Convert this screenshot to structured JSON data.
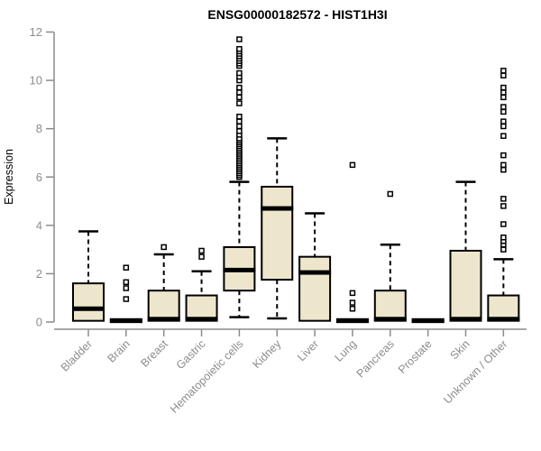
{
  "chart_data": {
    "type": "boxplot",
    "title": "ENSG00000182572 - HIST1H3I",
    "ylabel": "Expression",
    "xlabel": "",
    "ylim": [
      0,
      12
    ],
    "yticks": [
      0,
      2,
      4,
      6,
      8,
      10,
      12
    ],
    "grid": false,
    "legend": false,
    "colors": {
      "box_fill": "#EDE6CD",
      "box_stroke": "#000000",
      "median": "#000000",
      "whisker": "#000000",
      "outlier_fill": "#FFFFFF",
      "axis": "#8C8C8C",
      "tick_label": "#8C8C8C",
      "title": "#000000"
    },
    "categories": [
      "Bladder",
      "Brain",
      "Breast",
      "Gastric",
      "Hematopoietic cells",
      "Kidney",
      "Liver",
      "Lung",
      "Pancreas",
      "Prostate",
      "Skin",
      "Unknown / Other"
    ],
    "series": [
      {
        "name": "Bladder",
        "low": 0.05,
        "q1": 0.05,
        "median": 0.55,
        "q3": 1.6,
        "high": 3.75,
        "outliers": []
      },
      {
        "name": "Brain",
        "low": 0,
        "q1": 0,
        "median": 0.05,
        "q3": 0.12,
        "high": 0.12,
        "outliers": [
          0.95,
          1.4,
          1.65,
          2.25
        ]
      },
      {
        "name": "Breast",
        "low": 0.05,
        "q1": 0.05,
        "median": 0.12,
        "q3": 1.3,
        "high": 2.8,
        "outliers": [
          3.1
        ]
      },
      {
        "name": "Gastric",
        "low": 0.05,
        "q1": 0.05,
        "median": 0.12,
        "q3": 1.1,
        "high": 2.1,
        "outliers": [
          2.7,
          2.95
        ]
      },
      {
        "name": "Hematopoietic cells",
        "low": 0.2,
        "q1": 1.3,
        "median": 2.15,
        "q3": 3.1,
        "high": 5.8,
        "outliers": [
          6.0,
          6.08,
          6.16,
          6.24,
          6.32,
          6.4,
          6.48,
          6.56,
          6.64,
          6.72,
          6.8,
          6.88,
          6.96,
          7.04,
          7.12,
          7.2,
          7.28,
          7.36,
          7.44,
          7.52,
          7.6,
          7.75,
          7.9,
          8.1,
          8.3,
          8.5,
          9.05,
          9.3,
          9.5,
          9.7,
          10.0,
          10.15,
          10.3,
          10.6,
          10.7,
          10.8,
          10.9,
          11.0,
          11.1,
          11.2,
          11.3,
          11.7
        ]
      },
      {
        "name": "Kidney",
        "low": 0.15,
        "q1": 1.75,
        "median": 4.7,
        "q3": 5.6,
        "high": 7.6,
        "outliers": []
      },
      {
        "name": "Liver",
        "low": 0.05,
        "q1": 0.05,
        "median": 2.05,
        "q3": 2.7,
        "high": 4.5,
        "outliers": []
      },
      {
        "name": "Lung",
        "low": 0,
        "q1": 0,
        "median": 0.05,
        "q3": 0.12,
        "high": 0.12,
        "outliers": [
          0.55,
          0.8,
          1.2,
          6.5
        ]
      },
      {
        "name": "Pancreas",
        "low": 0.05,
        "q1": 0.05,
        "median": 0.12,
        "q3": 1.3,
        "high": 3.2,
        "outliers": [
          5.3
        ]
      },
      {
        "name": "Prostate",
        "low": 0,
        "q1": 0,
        "median": 0.05,
        "q3": 0.12,
        "high": 0.12,
        "outliers": []
      },
      {
        "name": "Skin",
        "low": 0.05,
        "q1": 0.05,
        "median": 0.12,
        "q3": 2.95,
        "high": 5.8,
        "outliers": []
      },
      {
        "name": "Unknown / Other",
        "low": 0.05,
        "q1": 0.05,
        "median": 0.12,
        "q3": 1.1,
        "high": 2.6,
        "outliers": [
          3.0,
          3.2,
          3.35,
          3.5,
          4.05,
          4.8,
          5.1,
          6.3,
          6.5,
          6.9,
          7.7,
          8.1,
          8.3,
          8.7,
          8.9,
          9.3,
          9.5,
          9.7,
          10.2,
          10.4
        ]
      }
    ]
  }
}
